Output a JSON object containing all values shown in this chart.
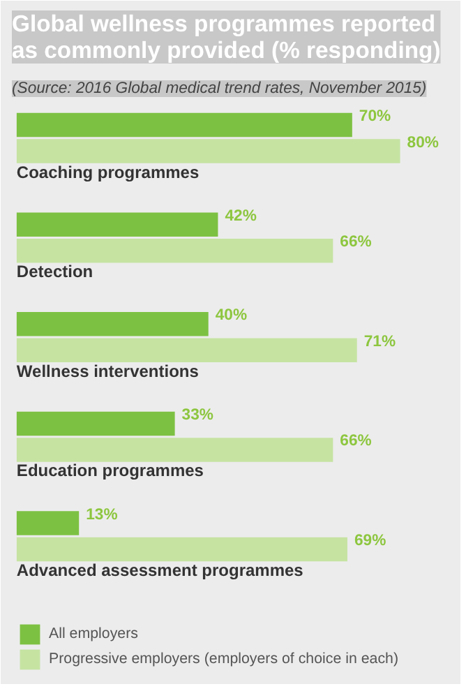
{
  "chart_data": {
    "type": "bar",
    "orientation": "horizontal",
    "title": "Global wellness programmes reported\nas commonly provided (% responding)",
    "subtitle": "(Source: 2016 Global medical trend rates, November 2015)",
    "categories": [
      "Coaching programmes",
      "Detection",
      "Wellness interventions",
      "Education programmes",
      "Advanced assessment programmes"
    ],
    "series": [
      {
        "name": "All employers",
        "color": "#7dc142",
        "values": [
          70,
          42,
          40,
          33,
          13
        ],
        "value_labels": [
          "70%",
          "42%",
          "40%",
          "33%",
          "13%"
        ]
      },
      {
        "name": "Progressive employers (employers of choice in each)",
        "color": "#c6e3a2",
        "values": [
          80,
          66,
          71,
          66,
          69
        ],
        "value_labels": [
          "80%",
          "66%",
          "71%",
          "66%",
          "69%"
        ]
      }
    ],
    "legend": "bottom"
  }
}
